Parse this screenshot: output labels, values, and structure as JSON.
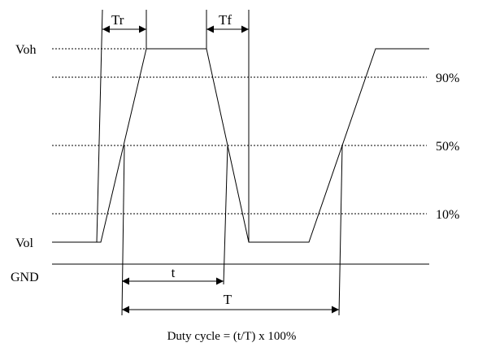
{
  "diagram": {
    "levels": {
      "voh": "Voh",
      "vol": "Vol",
      "gnd": "GND",
      "p90": "90%",
      "p50": "50%",
      "p10": "10%"
    },
    "timing": {
      "rise": "Tr",
      "fall": "Tf",
      "pulse": "t",
      "period": "T"
    },
    "formula": "Duty cycle = (t/T) x 100%",
    "colors": {
      "line": "#000000",
      "background": "#ffffff"
    }
  }
}
